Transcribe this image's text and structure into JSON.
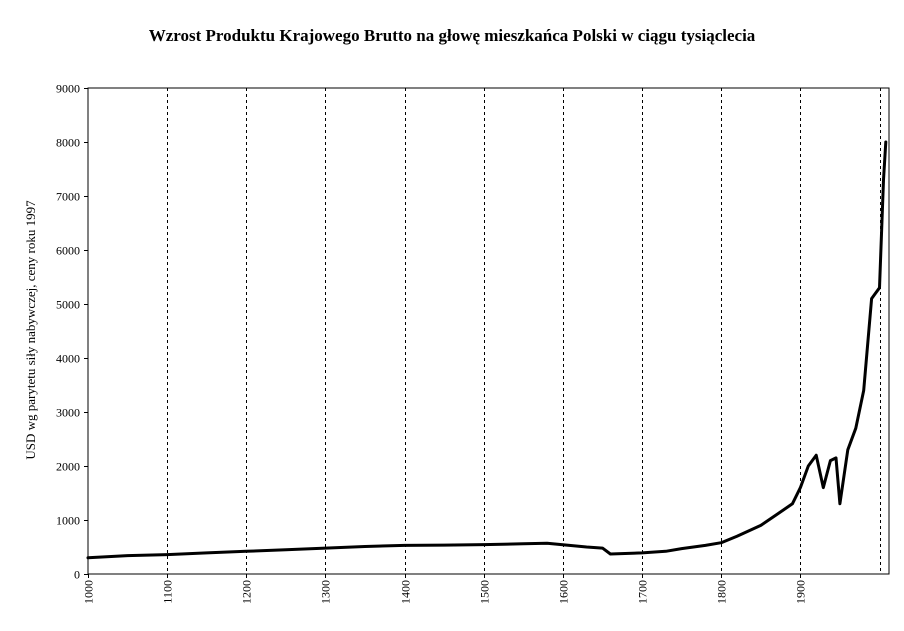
{
  "chart_data": {
    "type": "line",
    "title": "Wzrost Produktu Krajowego Brutto na głowę mieszkańca Polski w ciągu tysiąclecia",
    "xlabel": "",
    "ylabel": "USD wg parytetu siły nabywczej, ceny roku 1997",
    "xlim": [
      1000,
      2012
    ],
    "ylim": [
      0,
      9000
    ],
    "x_ticks": [
      1000,
      1100,
      1200,
      1300,
      1400,
      1500,
      1600,
      1700,
      1800,
      1900
    ],
    "x_tick_labels": [
      "1000",
      "1100",
      "1200",
      "1300",
      "1400",
      "1500",
      "1600",
      "1700",
      "1800",
      "1900"
    ],
    "y_ticks": [
      0,
      1000,
      2000,
      3000,
      4000,
      5000,
      6000,
      7000,
      8000,
      9000
    ],
    "y_tick_labels": [
      "0",
      "1000",
      "2000",
      "3000",
      "4000",
      "5000",
      "6000",
      "7000",
      "8000",
      "9000"
    ],
    "vertical_gridlines": [
      1100,
      1200,
      1300,
      1400,
      1500,
      1600,
      1700,
      1800,
      1900,
      2000
    ],
    "grid": "vertical dashed",
    "legend": "none",
    "line_color": "#000000",
    "series": [
      {
        "x": [
          1000,
          1050,
          1100,
          1150,
          1200,
          1250,
          1300,
          1350,
          1400,
          1450,
          1500,
          1550,
          1580,
          1600,
          1630,
          1650,
          1660,
          1700,
          1730,
          1750,
          1780,
          1800,
          1820,
          1850,
          1870,
          1890,
          1900,
          1910,
          1920,
          1929,
          1938,
          1945,
          1950,
          1960,
          1970,
          1980,
          1990,
          1995,
          2000,
          2003,
          2005,
          2008
        ],
        "y": [
          300,
          340,
          360,
          390,
          420,
          450,
          480,
          510,
          530,
          535,
          545,
          560,
          570,
          540,
          500,
          480,
          370,
          390,
          420,
          470,
          530,
          580,
          700,
          900,
          1100,
          1300,
          1600,
          2000,
          2200,
          1600,
          2100,
          2150,
          1300,
          2300,
          2700,
          3400,
          5100,
          5200,
          5300,
          6500,
          7300,
          8000
        ]
      }
    ]
  }
}
